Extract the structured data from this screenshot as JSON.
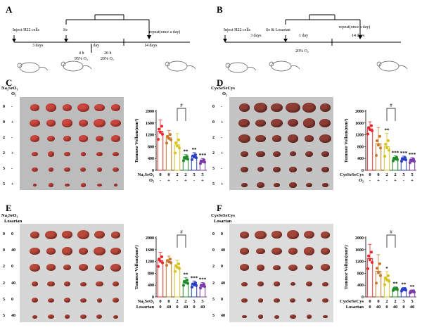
{
  "panels": {
    "A": {
      "label": "A",
      "inject": "Inject H22 cells",
      "drug": "Se",
      "d1": "3 days",
      "d2": "1 day",
      "d3": "14 days",
      "repeat": "repeat(once a day)",
      "h1": "4 h",
      "o1": "95% O₂",
      "h2": "20 h",
      "o2": "20% O₂"
    },
    "B": {
      "label": "B",
      "inject": "Inject H22 cells",
      "drug": "Se & Losartan",
      "d1": "3 days",
      "d2": "1 day",
      "d3": "14 days",
      "repeat": "repeat(once a day)",
      "o": "20% O₂"
    },
    "C": {
      "label": "C",
      "photo_title": "Na₂SeO₃",
      "photo_title2": "O₂",
      "rows": [
        [
          "0",
          "-"
        ],
        [
          "0",
          "+"
        ],
        [
          "2",
          "-"
        ],
        [
          "2",
          "+"
        ],
        [
          "5",
          "-"
        ],
        [
          "5",
          "+"
        ]
      ],
      "xrow1_label": "Na₂SeO₃",
      "xrow2_label": "O₂",
      "xrow1": [
        "0",
        "0",
        "2",
        "2",
        "5",
        "5"
      ],
      "xrow2": [
        "-",
        "+",
        "-",
        "+",
        "-",
        "+"
      ]
    },
    "D": {
      "label": "D",
      "photo_title": "CysSeSeCys",
      "photo_title2": "O₂",
      "rows": [
        [
          "0",
          "-"
        ],
        [
          "0",
          "+"
        ],
        [
          "2",
          "-"
        ],
        [
          "2",
          "+"
        ],
        [
          "5",
          "-"
        ],
        [
          "5",
          "+"
        ]
      ],
      "xrow1_label": "CysSeSeCys",
      "xrow2_label": "O₂",
      "xrow1": [
        "0",
        "0",
        "2",
        "2",
        "5",
        "5"
      ],
      "xrow2": [
        "-",
        "+",
        "-",
        "+",
        "-",
        "+"
      ]
    },
    "E": {
      "label": "E",
      "photo_title": "Na₂SeO₃",
      "photo_title2": "Losartan",
      "rows": [
        [
          "0",
          "0"
        ],
        [
          "0",
          "40"
        ],
        [
          "2",
          "0"
        ],
        [
          "2",
          "40"
        ],
        [
          "5",
          "0"
        ],
        [
          "5",
          "40"
        ]
      ],
      "xrow1_label": "Na₂SeO₃",
      "xrow2_label": "Losartan",
      "xrow1": [
        "0",
        "0",
        "2",
        "2",
        "5",
        "5"
      ],
      "xrow2": [
        "0",
        "40",
        "0",
        "40",
        "0",
        "40"
      ]
    },
    "F": {
      "label": "F",
      "photo_title": "CysSeSeCys",
      "photo_title2": "Losartan",
      "rows": [
        [
          "0",
          "0"
        ],
        [
          "0",
          "40"
        ],
        [
          "2",
          "0"
        ],
        [
          "2",
          "40"
        ],
        [
          "5",
          "0"
        ],
        [
          "5",
          "40"
        ]
      ],
      "xrow1_label": "CysSeSeCys",
      "xrow2_label": "Losartan",
      "xrow1": [
        "0",
        "0",
        "2",
        "2",
        "5",
        "5"
      ],
      "xrow2": [
        "0",
        "40",
        "0",
        "40",
        "0",
        "40"
      ]
    }
  },
  "colors": [
    "#e8262b",
    "#c8782a",
    "#d6c21a",
    "#1f8a2a",
    "#2a3fc4",
    "#7b3aa8"
  ],
  "chart_data": [
    {
      "panel": "C",
      "type": "bar",
      "ylabel": "Tummor Vollum(mm³)",
      "ylim": [
        0,
        2000
      ],
      "yticks": [
        "0",
        "400",
        "800",
        "1200",
        "1600",
        "2000"
      ],
      "values": [
        1320,
        1100,
        860,
        410,
        460,
        300
      ],
      "errors": [
        380,
        250,
        380,
        120,
        140,
        100
      ],
      "sig": [
        "",
        "",
        "",
        "**",
        "**",
        "***"
      ],
      "bracket": "#",
      "bracket_pair": [
        2,
        3
      ]
    },
    {
      "panel": "D",
      "type": "bar",
      "ylabel": "Tummor Vollum(mm³)",
      "ylim": [
        0,
        2000
      ],
      "yticks": [
        "0",
        "400",
        "800",
        "1200",
        "1600",
        "2000"
      ],
      "values": [
        1400,
        900,
        800,
        390,
        380,
        330
      ],
      "errors": [
        240,
        550,
        450,
        100,
        100,
        100
      ],
      "sig": [
        "",
        "",
        "**",
        "***",
        "***",
        "***"
      ],
      "bracket": "#",
      "bracket_pair": [
        2,
        3
      ]
    },
    {
      "panel": "E",
      "type": "bar",
      "ylabel": "Tummor Vollum(mm³)",
      "ylim": [
        0,
        2000
      ],
      "yticks": [
        "0",
        "400",
        "800",
        "1200",
        "1600",
        "2000"
      ],
      "values": [
        1230,
        1200,
        1020,
        500,
        420,
        380
      ],
      "errors": [
        280,
        180,
        220,
        150,
        120,
        110
      ],
      "sig": [
        "",
        "",
        "",
        "**",
        "***",
        "***"
      ],
      "bracket": "#",
      "bracket_pair": [
        2,
        3
      ]
    },
    {
      "panel": "F",
      "type": "bar",
      "ylabel": "Tummor Vollum(mm³)",
      "ylim": [
        0,
        2000
      ],
      "yticks": [
        "0",
        "400",
        "800",
        "1200",
        "1600",
        "2000"
      ],
      "values": [
        1300,
        870,
        600,
        270,
        250,
        180
      ],
      "errors": [
        480,
        560,
        260,
        70,
        70,
        60
      ],
      "sig": [
        "",
        "",
        "*",
        "**",
        "**",
        "**"
      ],
      "bracket": "#",
      "bracket_pair": [
        2,
        3
      ]
    }
  ]
}
